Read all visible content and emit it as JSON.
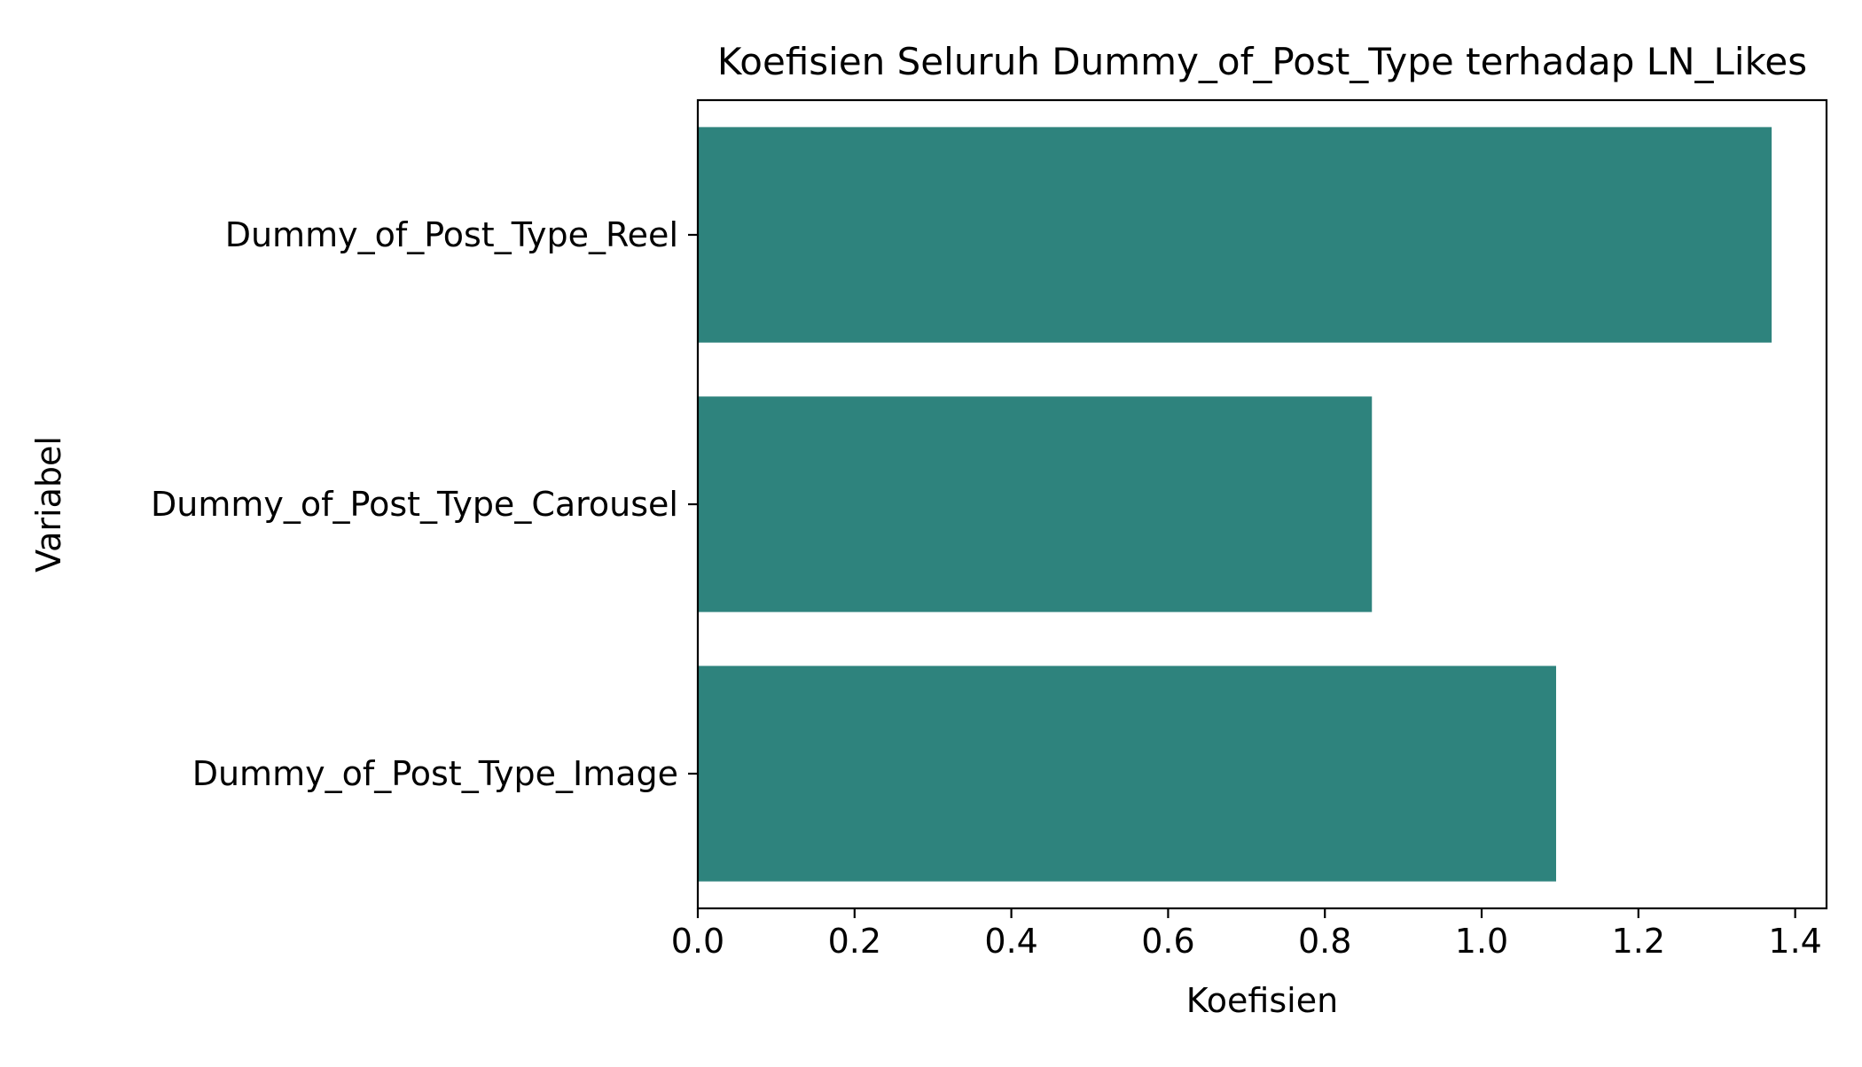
{
  "chart_data": {
    "type": "bar",
    "orientation": "horizontal",
    "title": "Koefisien Seluruh Dummy_of_Post_Type terhadap LN_Likes",
    "xlabel": "Koefisien",
    "ylabel": "Variabel",
    "categories": [
      "Dummy_of_Post_Type_Reel",
      "Dummy_of_Post_Type_Carousel",
      "Dummy_of_Post_Type_Image"
    ],
    "values": [
      1.37,
      0.86,
      1.095
    ],
    "xlim": [
      0,
      1.44
    ],
    "xticks": [
      0.0,
      0.2,
      0.4,
      0.6,
      0.8,
      1.0,
      1.2,
      1.4
    ],
    "xtick_labels": [
      "0.0",
      "0.2",
      "0.4",
      "0.6",
      "0.8",
      "1.0",
      "1.2",
      "1.4"
    ],
    "bar_color": "#2e837d",
    "grid": false,
    "legend": "none"
  }
}
